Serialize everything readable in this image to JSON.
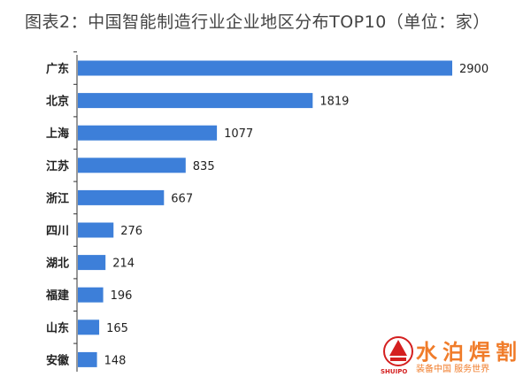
{
  "chart_data": {
    "type": "bar",
    "orientation": "horizontal",
    "title": "图表2：中国智能制造行业企业地区分布TOP10（单位：家）",
    "categories": [
      "广东",
      "北京",
      "上海",
      "江苏",
      "浙江",
      "四川",
      "湖北",
      "福建",
      "山东",
      "安徽"
    ],
    "values": [
      2900,
      1819,
      1077,
      835,
      667,
      276,
      214,
      196,
      165,
      148
    ],
    "xlim": [
      0,
      2900
    ],
    "grid": false,
    "legend": "none",
    "bar_color": "#3d7fd9",
    "data_labels": true
  },
  "watermark": {
    "brand": "水泊焊割",
    "slogan": "装备中国 服务世界",
    "english": "SHUIPO",
    "color": "#f07c2a"
  }
}
